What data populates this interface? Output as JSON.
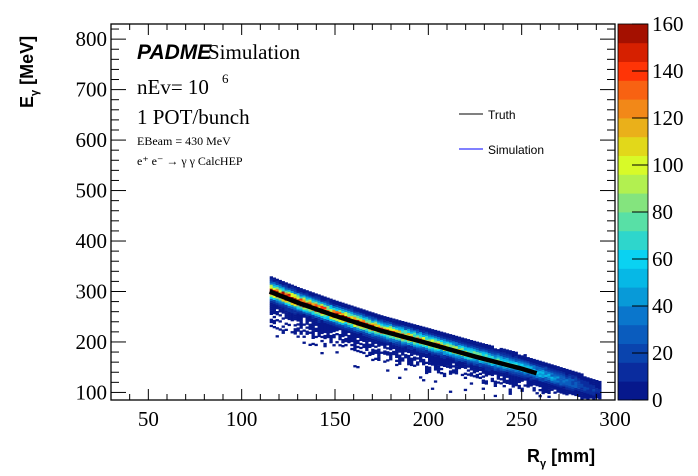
{
  "chart_data": {
    "type": "heatmap",
    "title": "",
    "xlabel": "R",
    "xlabel_sub": "γ",
    "xlabel_unit": "[mm]",
    "ylabel": "E",
    "ylabel_sub": "γ",
    "ylabel_unit": "[MeV]",
    "xlim": [
      30,
      300
    ],
    "ylim": [
      85,
      830
    ],
    "zlim": [
      0,
      160
    ],
    "x_ticks": [
      50,
      100,
      150,
      200,
      250,
      300
    ],
    "y_ticks": [
      100,
      200,
      300,
      400,
      500,
      600,
      700,
      800
    ],
    "z_ticks": [
      0,
      20,
      40,
      60,
      80,
      100,
      120,
      140,
      160
    ],
    "palette": [
      "#06188c",
      "#0a2c9e",
      "#0a44ae",
      "#0a5cbe",
      "#0a76cc",
      "#089ad8",
      "#06b8e6",
      "#0ad2f2",
      "#2ed6cc",
      "#58e0a6",
      "#84e47e",
      "#b2f050",
      "#d8fa28",
      "#e2d81a",
      "#eab01a",
      "#f28818",
      "#f86212",
      "#ff3406",
      "#d62000",
      "#a41000"
    ],
    "truth_curve": {
      "x": [
        115,
        130,
        150,
        175,
        200,
        225,
        250,
        258
      ],
      "y": [
        300,
        278,
        252,
        222,
        197,
        171,
        147,
        138
      ]
    },
    "simulation_band": {
      "x_range": [
        115,
        292
      ],
      "peak_counts": {
        "x": [
          115,
          150,
          200,
          250,
          292
        ],
        "z": [
          160,
          140,
          110,
          60,
          8
        ]
      },
      "energy_spread_mev": 9
    },
    "legend": {
      "placement": "top-right",
      "entries": [
        {
          "label": "Truth",
          "color": "#000000"
        },
        {
          "label": "Simulation",
          "color": "#0000ff"
        }
      ]
    },
    "annotations": {
      "brand": "PADME",
      "brand_suffix": "Simulation",
      "nev": "nEv= 10",
      "nev_exp": "6",
      "pot": "1 POT/bunch",
      "ebeam": "EBeam = 430 MeV",
      "process": "e⁺ e⁻ → γ γ CalcHEP"
    }
  }
}
